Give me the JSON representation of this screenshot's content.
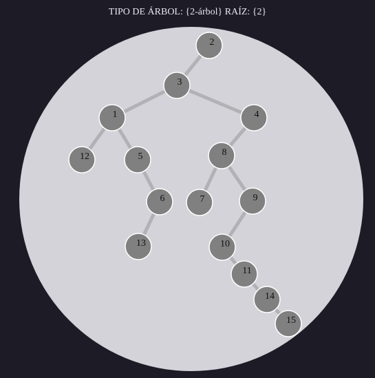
{
  "header": {
    "title": "TIPO DE ÁRBOL: {2-árbol} RAÍZ: {2}"
  },
  "colors": {
    "background": "#1c1b26",
    "disc": "#d3d3d9",
    "edge": "#b1b1b6",
    "node_fill": "#808080",
    "node_stroke": "#ffffff",
    "label": "#111111"
  },
  "tree": {
    "root": "2",
    "nodes": [
      "2",
      "3",
      "1",
      "4",
      "12",
      "5",
      "8",
      "6",
      "7",
      "9",
      "13",
      "10",
      "11",
      "14",
      "15"
    ],
    "edges": [
      [
        "2",
        "3"
      ],
      [
        "3",
        "1"
      ],
      [
        "3",
        "4"
      ],
      [
        "1",
        "12"
      ],
      [
        "1",
        "5"
      ],
      [
        "4",
        "8"
      ],
      [
        "5",
        "6"
      ],
      [
        "8",
        "7"
      ],
      [
        "8",
        "9"
      ],
      [
        "6",
        "13"
      ],
      [
        "9",
        "10"
      ],
      [
        "10",
        "11"
      ],
      [
        "11",
        "14"
      ],
      [
        "14",
        "15"
      ]
    ]
  }
}
